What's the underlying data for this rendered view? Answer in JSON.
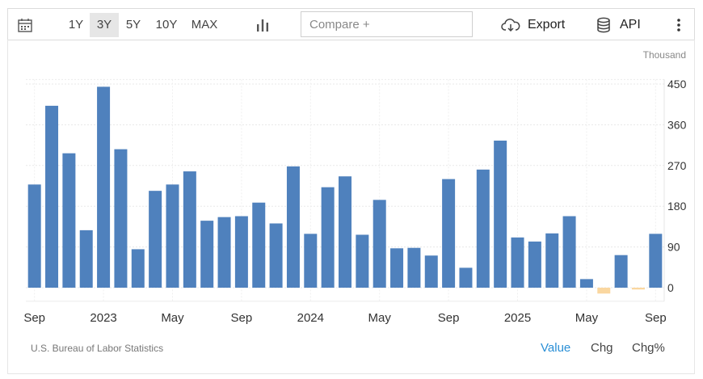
{
  "toolbar": {
    "ranges": [
      "1Y",
      "3Y",
      "5Y",
      "10Y",
      "MAX"
    ],
    "active_range": "3Y",
    "compare_placeholder": "Compare +",
    "export_label": "Export",
    "api_label": "API"
  },
  "unit_label": "Thousand",
  "source": "U.S. Bureau of Labor Statistics",
  "view_modes": [
    "Value",
    "Chg",
    "Chg%"
  ],
  "active_mode": "Value",
  "colors": {
    "positive": "#4f81bd",
    "negative": "#fad7a0",
    "active_link": "#2a8fd6"
  },
  "chart_data": {
    "type": "bar",
    "title": "",
    "xlabel": "",
    "ylabel": "",
    "unit": "Thousand",
    "ylim": [
      -30,
      460
    ],
    "yticks": [
      0,
      90,
      180,
      270,
      360,
      450
    ],
    "y_axis_side": "right",
    "x_tick_labels": [
      "Sep",
      "2023",
      "May",
      "Sep",
      "2024",
      "May",
      "Sep",
      "2025",
      "May",
      "Sep"
    ],
    "categories": [
      "Sep 2022",
      "Oct 2022",
      "Nov 2022",
      "Dec 2022",
      "Jan 2023",
      "Feb 2023",
      "Mar 2023",
      "Apr 2023",
      "May 2023",
      "Jun 2023",
      "Jul 2023",
      "Aug 2023",
      "Sep 2023",
      "Oct 2023",
      "Nov 2023",
      "Dec 2023",
      "Jan 2024",
      "Feb 2024",
      "Mar 2024",
      "Apr 2024",
      "May 2024",
      "Jun 2024",
      "Jul 2024",
      "Aug 2024",
      "Sep 2024",
      "Oct 2024",
      "Nov 2024",
      "Dec 2024",
      "Jan 2025",
      "Feb 2025",
      "Mar 2025",
      "Apr 2025",
      "May 2025",
      "Jun 2025",
      "Jul 2025",
      "Aug 2025",
      "Sep 2025"
    ],
    "values": [
      228,
      402,
      297,
      127,
      444,
      306,
      85,
      214,
      228,
      257,
      148,
      156,
      158,
      188,
      142,
      268,
      119,
      222,
      246,
      117,
      194,
      87,
      88,
      71,
      240,
      44,
      261,
      325,
      111,
      102,
      120,
      158,
      19,
      -13,
      72,
      -4,
      119
    ],
    "grid": true
  }
}
